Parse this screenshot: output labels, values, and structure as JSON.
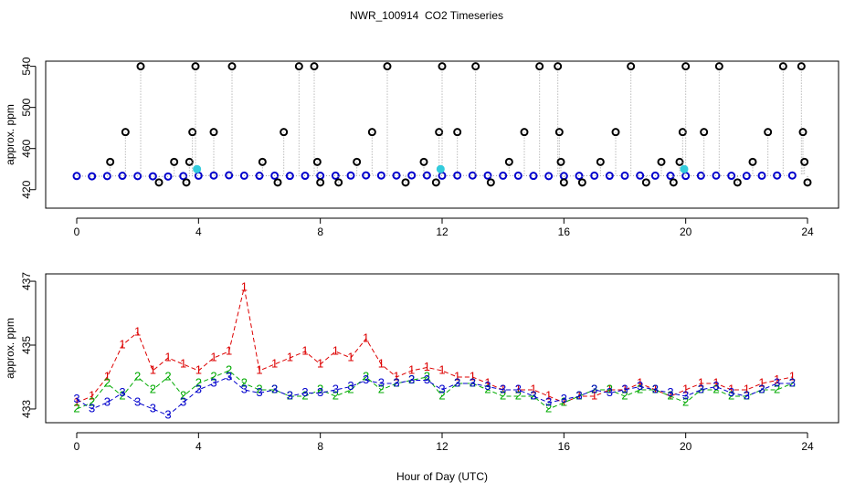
{
  "chart_data": [
    {
      "type": "scatter",
      "title": "NWR_100914  CO2 Timeseries",
      "ylabel": "approx. ppm",
      "xlim": [
        -1.02,
        25.02
      ],
      "xticks": [
        0,
        4,
        8,
        12,
        16,
        20,
        24
      ],
      "ylim": [
        402,
        545
      ],
      "yticks": [
        420,
        460,
        500,
        540
      ],
      "series": [
        {
          "color": "#0000cc",
          "marker": "circle",
          "x": [
            0,
            0.5,
            1,
            1.5,
            2,
            2.5,
            3,
            3.5,
            4,
            4.5,
            5,
            5.5,
            6,
            6.5,
            7,
            7.5,
            8,
            8.5,
            9,
            9.5,
            10,
            10.5,
            11,
            11.5,
            12,
            12.5,
            13,
            13.5,
            14,
            14.5,
            15,
            15.5,
            16,
            16.5,
            17,
            17.5,
            18,
            18.5,
            19,
            19.5,
            20,
            20.5,
            21,
            21.5,
            22,
            22.5,
            23,
            23.5
          ],
          "values": [
            433.3,
            433,
            433.2,
            433.5,
            433.2,
            433,
            432.8,
            433.2,
            433.6,
            433.8,
            434,
            433.6,
            433.5,
            433.6,
            433.4,
            433.5,
            433.5,
            433.6,
            433.7,
            433.9,
            433.8,
            433.8,
            433.9,
            433.9,
            433.6,
            433.8,
            433.8,
            433.7,
            433.6,
            433.6,
            433.4,
            433.2,
            433.3,
            433.4,
            433.6,
            433.5,
            433.6,
            433.7,
            433.6,
            433.5,
            433.4,
            433.6,
            433.7,
            433.5,
            433.4,
            433.6,
            433.8,
            433.8
          ]
        },
        {
          "color": "#000000",
          "marker": "circle",
          "stem": true,
          "x": [
            1.1,
            1.6,
            2.1,
            2.7,
            3.2,
            3.6,
            3.7,
            3.8,
            3.9,
            4.5,
            5.1,
            6.1,
            6.6,
            6.8,
            7.3,
            7.8,
            7.9,
            8.0,
            8.6,
            9.2,
            9.7,
            10.2,
            10.8,
            11.4,
            11.8,
            11.9,
            12.0,
            12.5,
            13.1,
            13.6,
            14.2,
            14.7,
            15.2,
            15.8,
            15.85,
            15.9,
            16.0,
            16.6,
            17.2,
            17.7,
            18.2,
            18.7,
            19.2,
            19.6,
            19.8,
            19.9,
            20.0,
            20.6,
            21.1,
            21.7,
            22.2,
            22.7,
            23.2,
            23.8,
            23.85,
            23.9,
            24.0
          ],
          "values": [
            447,
            476,
            540,
            427,
            447,
            427,
            447,
            476,
            540,
            476,
            540,
            447,
            427,
            476,
            540,
            540,
            447,
            427,
            427,
            447,
            476,
            540,
            427,
            447,
            427,
            476,
            540,
            476,
            540,
            427,
            447,
            476,
            540,
            540,
            476,
            447,
            427,
            427,
            447,
            476,
            540,
            427,
            447,
            427,
            447,
            476,
            540,
            476,
            540,
            427,
            447,
            476,
            540,
            540,
            476,
            447,
            427
          ]
        },
        {
          "color": "#33ccdd",
          "marker": "circle",
          "filled": true,
          "x": [
            3.95,
            11.95,
            19.95
          ],
          "values": [
            440,
            440,
            440
          ]
        }
      ]
    },
    {
      "type": "scatter",
      "ylabel": "approx. ppm",
      "xlabel": "Hour of Day (UTC)",
      "xlim": [
        -1.02,
        25.02
      ],
      "xticks": [
        0,
        4,
        8,
        12,
        16,
        20,
        24
      ],
      "ylim": [
        432.57,
        437.23
      ],
      "yticks": [
        433,
        435,
        437
      ],
      "x": [
        0,
        0.5,
        1,
        1.5,
        2,
        2.5,
        3,
        3.5,
        4,
        4.5,
        5,
        5.5,
        6,
        6.5,
        7,
        7.5,
        8,
        8.5,
        9,
        9.5,
        10,
        10.5,
        11,
        11.5,
        12,
        12.5,
        13,
        13.5,
        14,
        14.5,
        15,
        15.5,
        16,
        16.5,
        17,
        17.5,
        18,
        18.5,
        19,
        19.5,
        20,
        20.5,
        21,
        21.5,
        22,
        22.5,
        23,
        23.5
      ],
      "series": [
        {
          "color": "#dd0000",
          "marker": "1",
          "values": [
            433.2,
            433.4,
            434,
            435,
            435.4,
            434.2,
            434.6,
            434.4,
            434.2,
            434.6,
            434.8,
            436.8,
            434.2,
            434.4,
            434.6,
            434.8,
            434.4,
            434.8,
            434.6,
            435.2,
            434.4,
            434,
            434.2,
            434.3,
            434.2,
            434,
            434,
            433.8,
            433.6,
            433.6,
            433.6,
            433.4,
            433.2,
            433.4,
            433.4,
            433.6,
            433.6,
            433.8,
            433.6,
            433.4,
            433.6,
            433.8,
            433.8,
            433.6,
            433.6,
            433.8,
            433.9,
            434
          ]
        },
        {
          "color": "#00aa00",
          "marker": "2",
          "values": [
            433,
            433.2,
            433.8,
            433.4,
            434,
            433.6,
            434,
            433.4,
            433.8,
            434,
            434.2,
            433.8,
            433.6,
            433.6,
            433.4,
            433.4,
            433.6,
            433.4,
            433.6,
            434,
            433.6,
            433.8,
            433.9,
            434,
            433.4,
            433.8,
            433.8,
            433.6,
            433.4,
            433.4,
            433.4,
            433,
            433.2,
            433.4,
            433.6,
            433.6,
            433.4,
            433.6,
            433.6,
            433.4,
            433.2,
            433.6,
            433.6,
            433.4,
            433.4,
            433.6,
            433.6,
            433.8
          ]
        },
        {
          "color": "#0000cc",
          "marker": "3",
          "values": [
            433.3,
            433,
            433.2,
            433.5,
            433.2,
            433,
            432.8,
            433.2,
            433.6,
            433.8,
            434,
            433.6,
            433.5,
            433.6,
            433.4,
            433.5,
            433.5,
            433.6,
            433.7,
            433.9,
            433.8,
            433.8,
            433.9,
            433.9,
            433.6,
            433.8,
            433.8,
            433.7,
            433.6,
            433.6,
            433.4,
            433.2,
            433.3,
            433.4,
            433.6,
            433.5,
            433.6,
            433.7,
            433.6,
            433.5,
            433.4,
            433.6,
            433.7,
            433.5,
            433.4,
            433.6,
            433.8,
            433.8
          ]
        }
      ]
    }
  ]
}
